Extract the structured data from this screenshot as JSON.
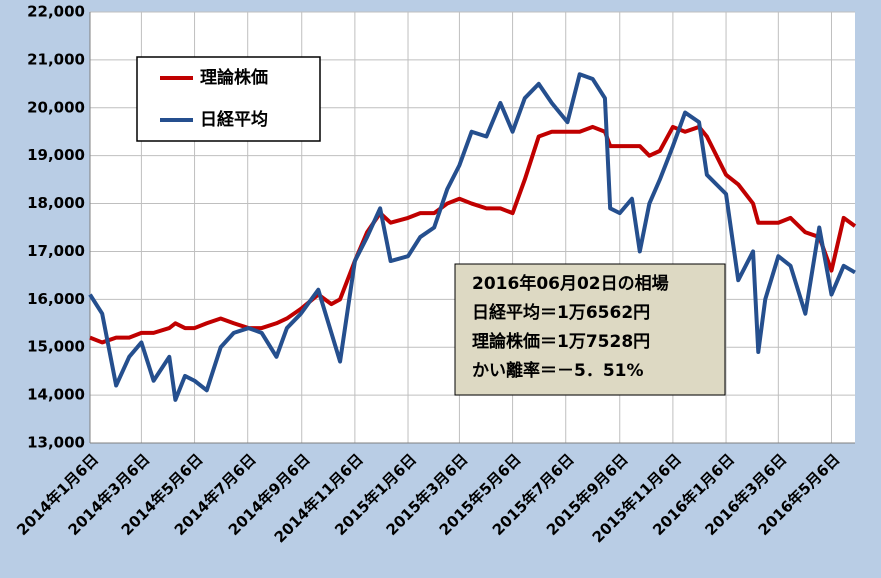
{
  "chart_data": {
    "type": "line",
    "x": [
      "2014-01-06",
      "2014-01-20",
      "2014-02-05",
      "2014-02-20",
      "2014-03-06",
      "2014-03-20",
      "2014-04-07",
      "2014-04-14",
      "2014-04-25",
      "2014-05-06",
      "2014-05-20",
      "2014-06-05",
      "2014-06-20",
      "2014-07-07",
      "2014-07-22",
      "2014-08-08",
      "2014-08-20",
      "2014-09-05",
      "2014-09-25",
      "2014-10-10",
      "2014-10-20",
      "2014-11-06",
      "2014-11-20",
      "2014-12-05",
      "2014-12-17",
      "2015-01-06",
      "2015-01-20",
      "2015-02-05",
      "2015-02-20",
      "2015-03-06",
      "2015-03-20",
      "2015-04-06",
      "2015-04-22",
      "2015-05-06",
      "2015-05-20",
      "2015-06-05",
      "2015-06-20",
      "2015-07-08",
      "2015-07-22",
      "2015-08-06",
      "2015-08-20",
      "2015-08-26",
      "2015-09-06",
      "2015-09-20",
      "2015-09-29",
      "2015-10-10",
      "2015-10-22",
      "2015-11-06",
      "2015-11-20",
      "2015-12-06",
      "2015-12-15",
      "2016-01-06",
      "2016-01-20",
      "2016-02-06",
      "2016-02-12",
      "2016-02-20",
      "2016-03-06",
      "2016-03-20",
      "2016-04-06",
      "2016-04-22",
      "2016-05-06",
      "2016-05-20",
      "2016-06-02"
    ],
    "series": [
      {
        "name": "理論株価",
        "color": "#c00000",
        "values": [
          15200,
          15100,
          15200,
          15200,
          15300,
          15300,
          15400,
          15500,
          15400,
          15400,
          15500,
          15600,
          15500,
          15400,
          15400,
          15500,
          15600,
          15800,
          16100,
          15900,
          16000,
          16800,
          17400,
          17800,
          17600,
          17700,
          17800,
          17800,
          18000,
          18100,
          18000,
          17900,
          17900,
          17800,
          18500,
          19400,
          19500,
          19500,
          19500,
          19600,
          19500,
          19200,
          19200,
          19200,
          19200,
          19000,
          19100,
          19600,
          19500,
          19600,
          19400,
          18600,
          18400,
          18000,
          17600,
          17600,
          17600,
          17700,
          17400,
          17300,
          16600,
          17700,
          17528
        ]
      },
      {
        "name": "日経平均",
        "color": "#254f8e",
        "values": [
          16100,
          15700,
          14200,
          14800,
          15100,
          14300,
          14800,
          13900,
          14400,
          14300,
          14100,
          15000,
          15300,
          15400,
          15300,
          14800,
          15400,
          15700,
          16200,
          15300,
          14700,
          16800,
          17300,
          17900,
          16800,
          16900,
          17300,
          17500,
          18300,
          18800,
          19500,
          19400,
          20100,
          19500,
          20200,
          20500,
          20100,
          19700,
          20700,
          20600,
          20200,
          17900,
          17800,
          18100,
          17000,
          18000,
          18500,
          19200,
          19900,
          19700,
          18600,
          18200,
          16400,
          17000,
          14900,
          16000,
          16900,
          16700,
          15700,
          17500,
          16100,
          16700,
          16562
        ]
      }
    ],
    "xlim": [
      "2014-01-06",
      "2016-06-02"
    ],
    "xticks": [
      {
        "value": "2014-01-06",
        "label": "2014年1月6日"
      },
      {
        "value": "2014-03-06",
        "label": "2014年3月6日"
      },
      {
        "value": "2014-05-06",
        "label": "2014年5月6日"
      },
      {
        "value": "2014-07-06",
        "label": "2014年7月6日"
      },
      {
        "value": "2014-09-06",
        "label": "2014年9月6日"
      },
      {
        "value": "2014-11-06",
        "label": "2014年11月6日"
      },
      {
        "value": "2015-01-06",
        "label": "2015年1月6日"
      },
      {
        "value": "2015-03-06",
        "label": "2015年3月6日"
      },
      {
        "value": "2015-05-06",
        "label": "2015年5月6日"
      },
      {
        "value": "2015-07-06",
        "label": "2015年7月6日"
      },
      {
        "value": "2015-09-06",
        "label": "2015年9月6日"
      },
      {
        "value": "2015-11-06",
        "label": "2015年11月6日"
      },
      {
        "value": "2016-01-06",
        "label": "2016年1月6日"
      },
      {
        "value": "2016-03-06",
        "label": "2016年3月6日"
      },
      {
        "value": "2016-05-06",
        "label": "2016年5月6日"
      }
    ],
    "ylim": [
      13000,
      22000
    ],
    "yticks": [
      {
        "value": 13000,
        "label": "13,000"
      },
      {
        "value": 14000,
        "label": "14,000"
      },
      {
        "value": 15000,
        "label": "15,000"
      },
      {
        "value": 16000,
        "label": "16,000"
      },
      {
        "value": 17000,
        "label": "17,000"
      },
      {
        "value": 18000,
        "label": "18,000"
      },
      {
        "value": 19000,
        "label": "19,000"
      },
      {
        "value": 20000,
        "label": "20,000"
      },
      {
        "value": 21000,
        "label": "21,000"
      },
      {
        "value": 22000,
        "label": "22,000"
      }
    ],
    "grid": true,
    "annotation": [
      "2016年06月02日の相場",
      "日経平均＝1万6562円",
      "理論株価＝1万7528円",
      "かい離率＝－5．51%"
    ]
  }
}
